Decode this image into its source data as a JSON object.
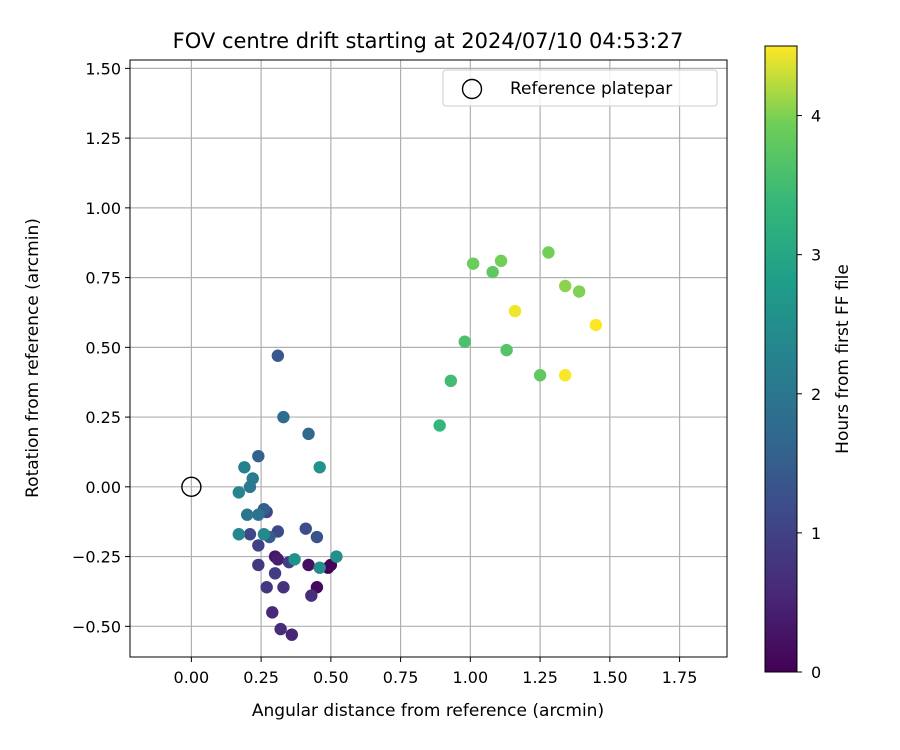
{
  "chart_data": {
    "type": "scatter",
    "title": "FOV centre drift starting at 2024/07/10 04:53:27",
    "xlabel": "Angular distance from reference (arcmin)",
    "ylabel": "Rotation from reference (arcmin)",
    "xlim": [
      -0.22,
      1.92
    ],
    "ylim": [
      -0.61,
      1.53
    ],
    "x_ticks": [
      "0.00",
      "0.25",
      "0.50",
      "0.75",
      "1.00",
      "1.25",
      "1.50",
      "1.75"
    ],
    "y_ticks": [
      "-0.50",
      "-0.25",
      "0.00",
      "0.25",
      "0.50",
      "0.75",
      "1.00",
      "1.25",
      "1.50"
    ],
    "grid": true,
    "legend": {
      "placement": "top-right",
      "entries": [
        "Reference platepar"
      ]
    },
    "colorbar": {
      "label": "Hours from first FF file",
      "colormap": "viridis",
      "range": [
        0,
        4.5
      ],
      "ticks": [
        "0",
        "1",
        "2",
        "3",
        "4"
      ]
    },
    "reference": {
      "x": 0.0,
      "y": 0.0,
      "label": "Reference platepar"
    },
    "points": [
      {
        "x": 0.49,
        "y": -0.29,
        "hours": 0.0
      },
      {
        "x": 0.5,
        "y": -0.28,
        "hours": 0.05
      },
      {
        "x": 0.45,
        "y": -0.36,
        "hours": 0.1
      },
      {
        "x": 0.42,
        "y": -0.28,
        "hours": 0.2
      },
      {
        "x": 0.3,
        "y": -0.25,
        "hours": 0.3
      },
      {
        "x": 0.31,
        "y": -0.26,
        "hours": 0.4
      },
      {
        "x": 0.36,
        "y": -0.53,
        "hours": 0.5
      },
      {
        "x": 0.29,
        "y": -0.45,
        "hours": 0.6
      },
      {
        "x": 0.32,
        "y": -0.51,
        "hours": 0.65
      },
      {
        "x": 0.43,
        "y": -0.39,
        "hours": 0.7
      },
      {
        "x": 0.33,
        "y": -0.36,
        "hours": 0.75
      },
      {
        "x": 0.27,
        "y": -0.36,
        "hours": 0.8
      },
      {
        "x": 0.24,
        "y": -0.28,
        "hours": 0.85
      },
      {
        "x": 0.3,
        "y": -0.31,
        "hours": 0.9
      },
      {
        "x": 0.35,
        "y": -0.27,
        "hours": 0.95
      },
      {
        "x": 0.24,
        "y": -0.21,
        "hours": 1.0
      },
      {
        "x": 0.27,
        "y": -0.09,
        "hours": 1.05
      },
      {
        "x": 0.21,
        "y": -0.17,
        "hours": 1.1
      },
      {
        "x": 0.31,
        "y": -0.16,
        "hours": 1.15
      },
      {
        "x": 0.41,
        "y": -0.15,
        "hours": 1.2
      },
      {
        "x": 0.45,
        "y": -0.18,
        "hours": 1.3
      },
      {
        "x": 0.31,
        "y": 0.47,
        "hours": 1.4
      },
      {
        "x": 0.28,
        "y": -0.18,
        "hours": 1.5
      },
      {
        "x": 0.26,
        "y": -0.08,
        "hours": 1.55
      },
      {
        "x": 0.24,
        "y": 0.11,
        "hours": 1.6
      },
      {
        "x": 0.42,
        "y": 0.19,
        "hours": 1.7
      },
      {
        "x": 0.33,
        "y": 0.25,
        "hours": 1.8
      },
      {
        "x": 0.24,
        "y": -0.1,
        "hours": 1.9
      },
      {
        "x": 0.2,
        "y": -0.1,
        "hours": 2.0
      },
      {
        "x": 0.21,
        "y": 0.0,
        "hours": 2.05
      },
      {
        "x": 0.22,
        "y": 0.03,
        "hours": 2.1
      },
      {
        "x": 0.19,
        "y": 0.07,
        "hours": 2.2
      },
      {
        "x": 0.17,
        "y": -0.02,
        "hours": 2.3
      },
      {
        "x": 0.17,
        "y": -0.17,
        "hours": 2.35
      },
      {
        "x": 0.26,
        "y": -0.17,
        "hours": 2.4
      },
      {
        "x": 0.46,
        "y": -0.29,
        "hours": 2.45
      },
      {
        "x": 0.52,
        "y": -0.25,
        "hours": 2.5
      },
      {
        "x": 0.37,
        "y": -0.26,
        "hours": 2.55
      },
      {
        "x": 0.46,
        "y": 0.07,
        "hours": 2.6
      },
      {
        "x": 0.89,
        "y": 0.22,
        "hours": 3.35
      },
      {
        "x": 0.93,
        "y": 0.38,
        "hours": 3.5
      },
      {
        "x": 0.98,
        "y": 0.52,
        "hours": 3.6
      },
      {
        "x": 1.13,
        "y": 0.49,
        "hours": 3.7
      },
      {
        "x": 1.25,
        "y": 0.4,
        "hours": 3.8
      },
      {
        "x": 1.08,
        "y": 0.77,
        "hours": 3.8
      },
      {
        "x": 1.01,
        "y": 0.8,
        "hours": 3.9
      },
      {
        "x": 1.11,
        "y": 0.81,
        "hours": 3.95
      },
      {
        "x": 1.28,
        "y": 0.84,
        "hours": 3.95
      },
      {
        "x": 1.39,
        "y": 0.7,
        "hours": 4.0
      },
      {
        "x": 1.34,
        "y": 0.72,
        "hours": 4.05
      },
      {
        "x": 1.16,
        "y": 0.63,
        "hours": 4.45
      },
      {
        "x": 1.34,
        "y": 0.4,
        "hours": 4.48
      },
      {
        "x": 1.45,
        "y": 0.58,
        "hours": 4.5
      }
    ]
  }
}
